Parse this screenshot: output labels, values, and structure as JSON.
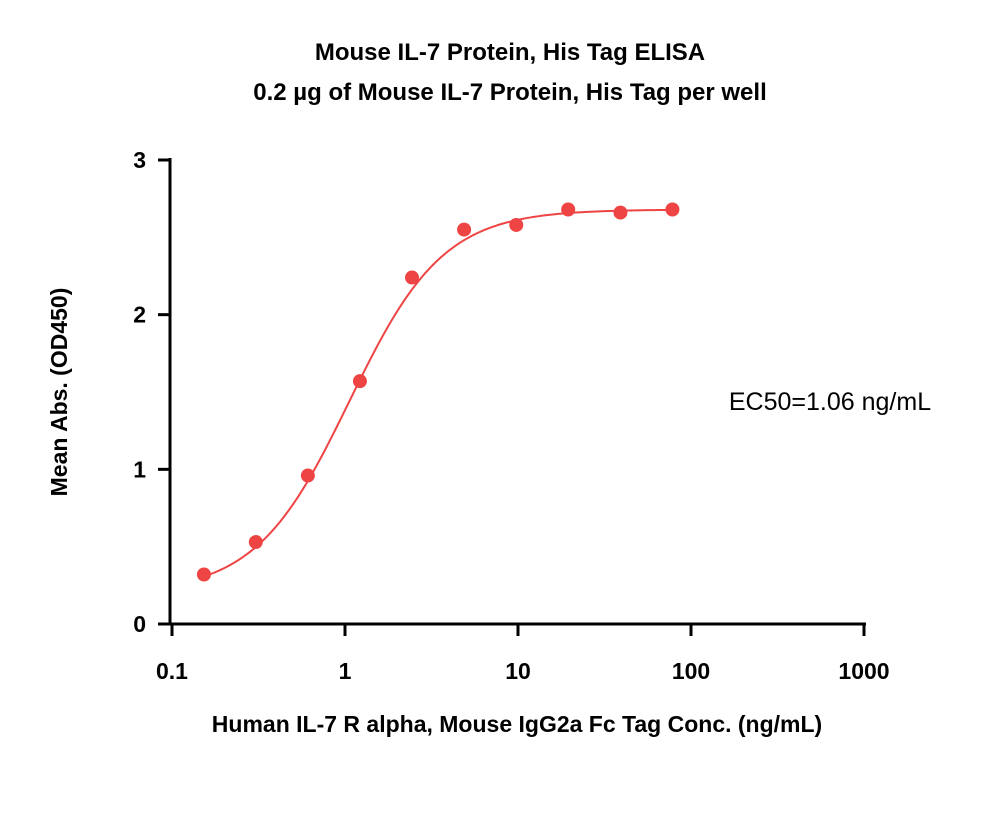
{
  "chart_data": {
    "type": "scatter",
    "title": "Mouse IL-7 Protein, His Tag ELISA",
    "subtitle": "0.2 µg of Mouse IL-7 Protein, His Tag per well",
    "xlabel": "Human IL-7 R alpha, Mouse IgG2a Fc Tag Conc. (ng/mL)",
    "ylabel": "Mean Abs. (OD450)",
    "x_scale": "log",
    "xlim": [
      0.1,
      1000
    ],
    "ylim": [
      0,
      3
    ],
    "x_ticks": [
      "0.1",
      "1",
      "10",
      "100",
      "1000"
    ],
    "x_tick_values": [
      0.1,
      1,
      10,
      100,
      1000
    ],
    "y_ticks": [
      "0",
      "1",
      "2",
      "3"
    ],
    "y_tick_values": [
      0,
      1,
      2,
      3
    ],
    "grid": false,
    "series": [
      {
        "color": "#ee4444",
        "x": [
          0.153,
          0.305,
          0.61,
          1.22,
          2.44,
          4.88,
          9.77,
          19.5,
          39.1,
          78.1
        ],
        "y": [
          0.32,
          0.53,
          0.96,
          1.57,
          2.24,
          2.55,
          2.58,
          2.68,
          2.66,
          2.68
        ],
        "fit": {
          "model": "4PL",
          "bottom": 0.2,
          "top": 2.68,
          "ec50": 1.06,
          "hill": 1.6
        }
      }
    ],
    "annotation": "EC50=1.06 ng/mL"
  }
}
